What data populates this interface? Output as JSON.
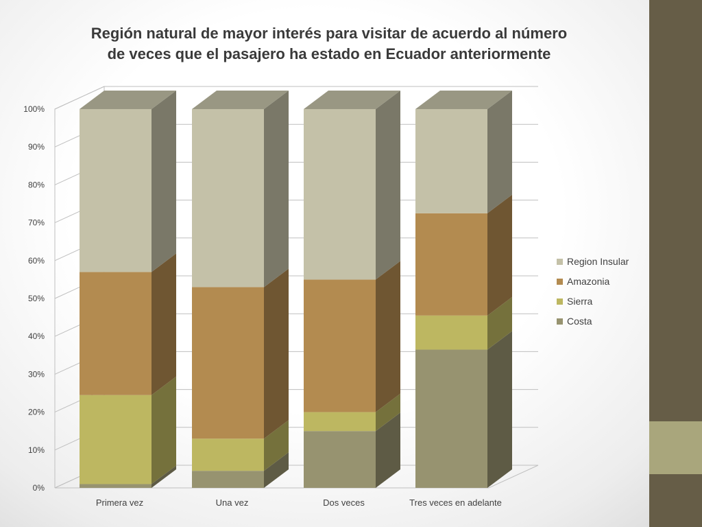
{
  "slide": {
    "title_line1": "Región natural de mayor interés para visitar de acuerdo al número",
    "title_line2": "de veces que el pasajero ha estado en Ecuador anteriormente"
  },
  "colors": {
    "side_bar": "#665d47",
    "side_accent": "#a9a67c"
  },
  "chart_data": {
    "type": "bar",
    "stacked": true,
    "percent_stacked": true,
    "three_d": true,
    "title": "Región natural de mayor interés para visitar de acuerdo al número de veces que el pasajero ha estado en Ecuador anteriormente",
    "xlabel": "",
    "ylabel": "",
    "categories": [
      "Primera vez",
      "Una vez",
      "Dos veces",
      "Tres veces en adelante"
    ],
    "y_ticks": [
      "0%",
      "10%",
      "20%",
      "30%",
      "40%",
      "50%",
      "60%",
      "70%",
      "80%",
      "90%",
      "100%"
    ],
    "ylim": [
      0,
      100
    ],
    "grid": true,
    "legend_position": "right",
    "series": [
      {
        "name": "Costa",
        "color": "#979370",
        "values": [
          1,
          4.5,
          15,
          36.5
        ]
      },
      {
        "name": "Sierra",
        "color": "#bdb761",
        "values": [
          23.5,
          8.5,
          5,
          9
        ]
      },
      {
        "name": "Amazonia",
        "color": "#b38b50",
        "values": [
          32.5,
          40,
          35,
          27
        ]
      },
      {
        "name": "Region Insular",
        "color": "#c4c1a8",
        "values": [
          43,
          47,
          45,
          27.5
        ]
      }
    ]
  }
}
